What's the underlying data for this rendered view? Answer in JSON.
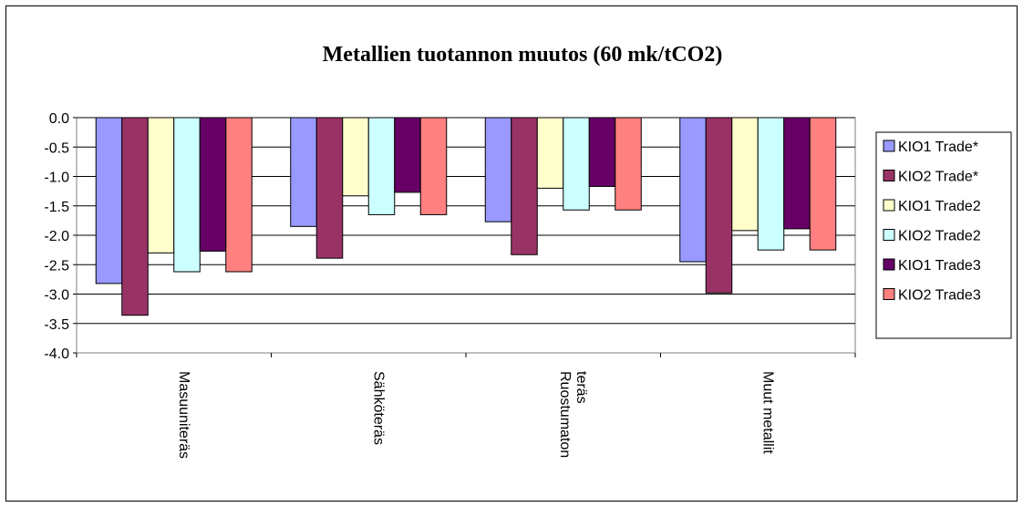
{
  "chart_data": {
    "type": "bar",
    "title": "Metallien tuotannon muutos (60 mk/tCO2)",
    "xlabel": "",
    "ylabel": "",
    "categories": [
      "Masuuniteräs",
      "Sähköteräs",
      "Ruostumaton teräs",
      "Muut metallit"
    ],
    "category_lines": [
      [
        "Masuuniteräs"
      ],
      [
        "Sähköteräs"
      ],
      [
        "Ruostumaton",
        "teräs"
      ],
      [
        "Muut metallit"
      ]
    ],
    "ylim": [
      -4.0,
      0.0
    ],
    "yticks": [
      0.0,
      -0.5,
      -1.0,
      -1.5,
      -2.0,
      -2.5,
      -3.0,
      -3.5,
      -4.0
    ],
    "ytick_labels": [
      "0.0",
      "-0.5",
      "-1.0",
      "-1.5",
      "-2.0",
      "-2.5",
      "-3.0",
      "-3.5",
      "-4.0"
    ],
    "grid": true,
    "legend_position": "right",
    "series": [
      {
        "name": "KIO1 Trade*",
        "color": "#9999FF",
        "values": [
          -2.82,
          -1.85,
          -1.77,
          -2.45
        ]
      },
      {
        "name": "KIO2 Trade*",
        "color": "#993366",
        "values": [
          -3.36,
          -2.39,
          -2.33,
          -2.98
        ]
      },
      {
        "name": "KIO1  Trade2",
        "color": "#FFFFCC",
        "values": [
          -2.3,
          -1.33,
          -1.2,
          -1.92
        ]
      },
      {
        "name": "KIO2  Trade2",
        "color": "#CCFFFF",
        "values": [
          -2.62,
          -1.65,
          -1.57,
          -2.25
        ]
      },
      {
        "name": "KIO1 Trade3",
        "color": "#660066",
        "values": [
          -2.27,
          -1.27,
          -1.17,
          -1.89
        ]
      },
      {
        "name": "KIO2 Trade3",
        "color": "#FF8080",
        "values": [
          -2.62,
          -1.65,
          -1.57,
          -2.25
        ]
      }
    ]
  }
}
